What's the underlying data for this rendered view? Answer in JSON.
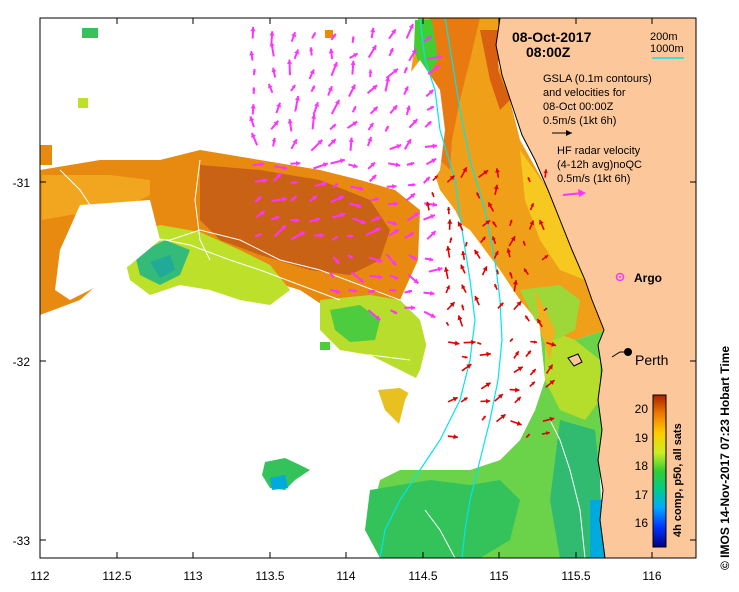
{
  "map": {
    "date_line": "08-Oct-2017",
    "time_line": "08:00Z",
    "legend_200m": "200m",
    "legend_1000m": "1000m",
    "gsla_lines": [
      "GSLA (0.1m contours)",
      "and velocities for",
      "08-Oct 00:00Z",
      "0.5m/s (1kt 6h)"
    ],
    "hf_lines": [
      "HF radar velocity",
      "(4-12h avg)noQC",
      "0.5m/s (1kt 6h)"
    ],
    "argo_label": "Argo",
    "city_label": "Perth",
    "credit": "© IMOS 14-Nov-2017 07:23 Hobart Time",
    "x_ticks": [
      "112",
      "112.5",
      "113",
      "113.5",
      "114",
      "114.5",
      "115",
      "115.5",
      "116"
    ],
    "y_ticks": [
      "-31",
      "-32",
      "-33"
    ],
    "colorbar": {
      "ticks": [
        "20",
        "19",
        "18",
        "17",
        "16"
      ],
      "label": "4h comp, p50, all sats",
      "min": 15.5,
      "max": 20.6
    },
    "colors": {
      "land": "#fcc89b",
      "ocean_blank": "#ffffff",
      "hf_vectors": "#ff33ff",
      "gsla_vectors": "#e00000",
      "isobath": "#00e5ee",
      "argo": "#ff33ff"
    }
  }
}
